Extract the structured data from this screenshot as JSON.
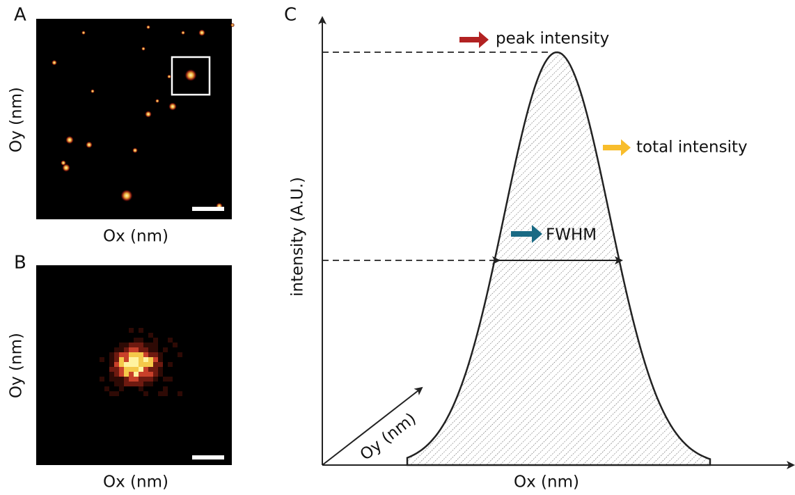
{
  "panels": [
    {
      "label": "A",
      "x_label": "Ox (nm)",
      "y_label": "Oy (nm)"
    },
    {
      "label": "B",
      "x_label": "Ox (nm)",
      "y_label": "Oy (nm)"
    },
    {
      "label": "C",
      "x_label": "Ox (nm)",
      "y_label": "intensity (A.U.)",
      "depth_label": "Oy (nm)",
      "annotations": [
        "peak intensity",
        "total intensity",
        "FWHM"
      ]
    }
  ]
}
